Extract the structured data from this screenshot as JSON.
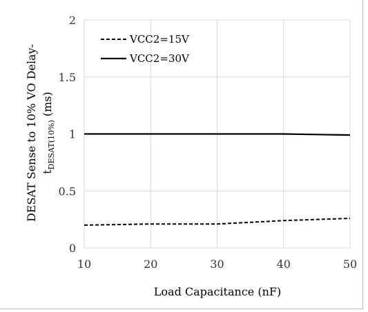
{
  "chart_data": {
    "type": "line",
    "xlabel": "Load Capacitance (nF)",
    "ylabel_line1": "DESAT Sense to 10% VO Delay-",
    "ylabel_line2_main": "t",
    "ylabel_line2_sub": "DESAT(10%)",
    "ylabel_line2_unit": " (ms)",
    "xlim": [
      10,
      50
    ],
    "ylim": [
      0,
      2
    ],
    "x_ticks": [
      "10",
      "20",
      "30",
      "40",
      "50"
    ],
    "y_ticks": [
      "0",
      "0.5",
      "1",
      "1.5",
      "2"
    ],
    "grid": true,
    "legend_position": "top-left",
    "series": [
      {
        "name": "VCC2=15V",
        "style": "dashed",
        "color": "#000000",
        "x": [
          10,
          20,
          30,
          35,
          40,
          50
        ],
        "y": [
          0.2,
          0.21,
          0.21,
          0.225,
          0.24,
          0.26
        ]
      },
      {
        "name": "VCC2=30V",
        "style": "solid",
        "color": "#000000",
        "x": [
          10,
          20,
          30,
          35,
          40,
          45,
          50
        ],
        "y": [
          1.0,
          1.0,
          1.0,
          1.0,
          1.0,
          0.995,
          0.99
        ]
      }
    ]
  }
}
